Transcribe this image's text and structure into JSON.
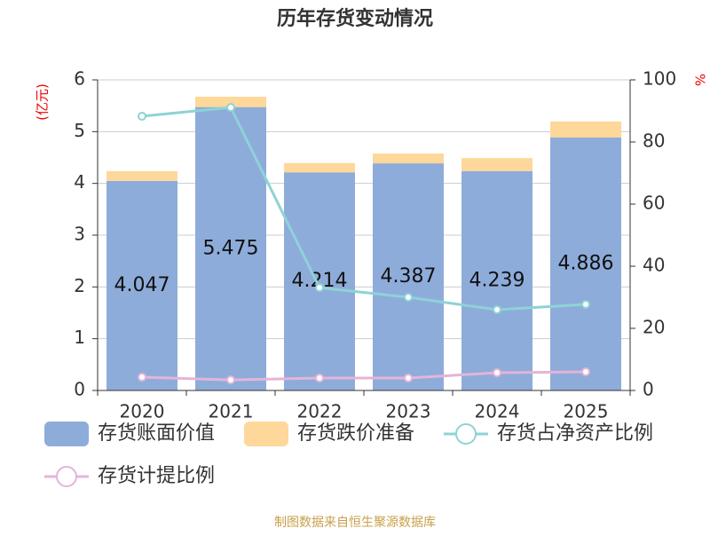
{
  "chart_data": {
    "type": "bar",
    "title": "历年存货变动情况",
    "ylabel": "(亿元)",
    "y2label": "%",
    "categories": [
      "2020",
      "2021",
      "2022",
      "2023",
      "2024",
      "2025"
    ],
    "series": [
      {
        "name": "存货账面价值",
        "type": "bar",
        "color": "#8eacda",
        "values": [
          4.047,
          5.475,
          4.214,
          4.387,
          4.239,
          4.886
        ]
      },
      {
        "name": "存货跌价准备",
        "type": "bar",
        "color": "#fdd89a",
        "values": [
          0.19,
          0.2,
          0.18,
          0.19,
          0.25,
          0.31
        ]
      },
      {
        "name": "存货占净资产比例",
        "type": "line",
        "axis": "y2",
        "color": "#8dd3d6",
        "values": [
          88.3,
          91.1,
          33.1,
          30,
          26,
          27.7
        ]
      },
      {
        "name": "存货计提比例",
        "type": "line",
        "axis": "y2",
        "color": "#e5b4d8",
        "values": [
          4.3,
          3.4,
          4,
          4,
          5.7,
          6
        ]
      }
    ],
    "ylim": [
      0,
      6
    ],
    "yticks": [
      0,
      1,
      2,
      3,
      4,
      5,
      6
    ],
    "y2lim": [
      0,
      100
    ],
    "y2ticks": [
      0,
      20,
      40,
      60,
      80,
      100
    ],
    "grid": true,
    "source": "制图数据来自恒生聚源数据库"
  }
}
